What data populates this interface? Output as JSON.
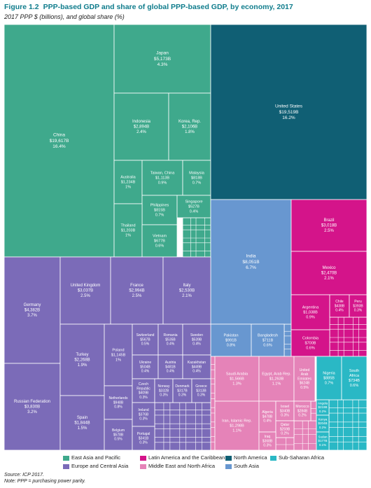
{
  "figure": {
    "number": "Figure 1.2",
    "title": "PPP-based GDP and share of global PPP-based GDP, by economy, 2017",
    "subtitle": "2017 PPP $ (billions), and global share (%)",
    "source": "Source: ICP 2017.",
    "note": "Note: PPP = purchasing power parity."
  },
  "colors": {
    "east_asia_pacific": "#3fa98c",
    "europe_central_asia": "#7b6bb8",
    "latin_america_caribbean": "#d4148a",
    "middle_east_north_africa": "#e583b8",
    "north_america": "#105f74",
    "south_asia": "#6897d0",
    "sub_saharan_africa": "#2ab8c5"
  },
  "chart_data": {
    "type": "treemap",
    "legend": [
      {
        "region": "east_asia_pacific",
        "label": "East Asia and Pacific"
      },
      {
        "region": "latin_america_caribbean",
        "label": "Latin America and the Caribbean"
      },
      {
        "region": "north_america",
        "label": "North America"
      },
      {
        "region": "sub_saharan_africa",
        "label": "Sub-Saharan Africa"
      },
      {
        "region": "europe_central_asia",
        "label": "Europe and Central Asia"
      },
      {
        "region": "middle_east_north_africa",
        "label": "Middle East and North Africa"
      },
      {
        "region": "south_asia",
        "label": "South Asia"
      }
    ],
    "economies": [
      {
        "name": "China",
        "value": "$19,617B",
        "share": "16.4%",
        "region": "east_asia_pacific"
      },
      {
        "name": "Japan",
        "value": "$5,173B",
        "share": "4.3%",
        "region": "east_asia_pacific"
      },
      {
        "name": "Indonesia",
        "value": "$2,894B",
        "share": "2.4%",
        "region": "east_asia_pacific"
      },
      {
        "name": "Korea, Rep.",
        "value": "$2,106B",
        "share": "1.8%",
        "region": "east_asia_pacific"
      },
      {
        "name": "Australia",
        "value": "$1,234B",
        "share": "1%",
        "region": "east_asia_pacific"
      },
      {
        "name": "Taiwan, China",
        "value": "$1,113B",
        "share": "0.9%",
        "region": "east_asia_pacific"
      },
      {
        "name": "Malaysia",
        "value": "$818B",
        "share": "0.7%",
        "region": "east_asia_pacific"
      },
      {
        "name": "Philippines",
        "value": "$815B",
        "share": "0.7%",
        "region": "east_asia_pacific"
      },
      {
        "name": "Singapore",
        "value": "$527B",
        "share": "0.4%",
        "region": "east_asia_pacific"
      },
      {
        "name": "Thailand",
        "value": "$1,203B",
        "share": "1%",
        "region": "east_asia_pacific"
      },
      {
        "name": "Vietnam",
        "value": "$677B",
        "share": "0.6%",
        "region": "east_asia_pacific"
      },
      {
        "name": "United States",
        "value": "$19,519B",
        "share": "16.2%",
        "region": "north_america"
      },
      {
        "name": "India",
        "value": "$8,051B",
        "share": "6.7%",
        "region": "south_asia"
      },
      {
        "name": "Pakistan",
        "value": "$991B",
        "share": "0.8%",
        "region": "south_asia"
      },
      {
        "name": "Bangladesh",
        "value": "$711B",
        "share": "0.6%",
        "region": "south_asia"
      },
      {
        "name": "Brazil",
        "value": "$3,018B",
        "share": "2.5%",
        "region": "latin_america_caribbean"
      },
      {
        "name": "Mexico",
        "value": "$2,470B",
        "share": "2.1%",
        "region": "latin_america_caribbean"
      },
      {
        "name": "Argentina",
        "value": "$1,038B",
        "share": "0.9%",
        "region": "latin_america_caribbean"
      },
      {
        "name": "Chile",
        "value": "$438B",
        "share": "0.4%",
        "region": "latin_america_caribbean"
      },
      {
        "name": "Peru",
        "value": "$393B",
        "share": "0.3%",
        "region": "latin_america_caribbean"
      },
      {
        "name": "Colombia",
        "value": "$700B",
        "share": "0.6%",
        "region": "latin_america_caribbean"
      },
      {
        "name": "Germany",
        "value": "$4,382B",
        "share": "3.7%",
        "region": "europe_central_asia"
      },
      {
        "name": "United Kingdom",
        "value": "$3,037B",
        "share": "2.5%",
        "region": "europe_central_asia"
      },
      {
        "name": "France",
        "value": "$2,994B",
        "share": "2.5%",
        "region": "europe_central_asia"
      },
      {
        "name": "Italy",
        "value": "$2,530B",
        "share": "2.1%",
        "region": "europe_central_asia"
      },
      {
        "name": "Russian Federation",
        "value": "$3,830B",
        "share": "3.2%",
        "region": "europe_central_asia"
      },
      {
        "name": "Turkey",
        "value": "$2,268B",
        "share": "1.9%",
        "region": "europe_central_asia"
      },
      {
        "name": "Spain",
        "value": "$1,844B",
        "share": "1.5%",
        "region": "europe_central_asia"
      },
      {
        "name": "Poland",
        "value": "$1,145B",
        "share": "1%",
        "region": "europe_central_asia"
      },
      {
        "name": "Netherlands",
        "value": "$948B",
        "share": "0.8%",
        "region": "europe_central_asia"
      },
      {
        "name": "Belgium",
        "value": "$578B",
        "share": "0.5%",
        "region": "europe_central_asia"
      },
      {
        "name": "Switzerland",
        "value": "$567B",
        "share": "0.5%",
        "region": "europe_central_asia"
      },
      {
        "name": "Romania",
        "value": "$535B",
        "share": "0.4%",
        "region": "europe_central_asia"
      },
      {
        "name": "Sweden",
        "value": "$539B",
        "share": "0.4%",
        "region": "europe_central_asia"
      },
      {
        "name": "Ukraine",
        "value": "$504B",
        "share": "0.4%",
        "region": "europe_central_asia"
      },
      {
        "name": "Austria",
        "value": "$481B",
        "share": "0.4%",
        "region": "europe_central_asia"
      },
      {
        "name": "Kazakhstan",
        "value": "$449B",
        "share": "0.4%",
        "region": "europe_central_asia"
      },
      {
        "name": "Czech Republic",
        "value": "$409B",
        "share": "0.3%",
        "region": "europe_central_asia"
      },
      {
        "name": "Norway",
        "value": "$332B",
        "share": "0.3%",
        "region": "europe_central_asia"
      },
      {
        "name": "Denmark",
        "value": "$317B",
        "share": "0.3%",
        "region": "europe_central_asia"
      },
      {
        "name": "Greece",
        "value": "$313B",
        "share": "0.3%",
        "region": "europe_central_asia"
      },
      {
        "name": "Ireland",
        "value": "$376B",
        "share": "0.3%",
        "region": "europe_central_asia"
      },
      {
        "name": "Portugal",
        "value": "$341B",
        "share": "0.3%",
        "region": "europe_central_asia"
      },
      {
        "name": "Saudi Arabia",
        "value": "$1,566B",
        "share": "1.3%",
        "region": "middle_east_north_africa"
      },
      {
        "name": "Egypt, Arab Rep.",
        "value": "$1,263B",
        "share": "1.1%",
        "region": "middle_east_north_africa"
      },
      {
        "name": "United Arab Emirates",
        "value": "$624B",
        "share": "0.5%",
        "region": "middle_east_north_africa"
      },
      {
        "name": "Iran, Islamic Rep.",
        "value": "$1,298B",
        "share": "1.1%",
        "region": "middle_east_north_africa"
      },
      {
        "name": "Algeria",
        "value": "$478B",
        "share": "0.4%",
        "region": "middle_east_north_africa"
      },
      {
        "name": "Israel",
        "value": "$340B",
        "share": "0.3%",
        "region": "middle_east_north_africa"
      },
      {
        "name": "Morocco",
        "value": "$284B",
        "share": "0.2%",
        "region": "middle_east_north_africa"
      },
      {
        "name": "Qatar",
        "value": "$259B",
        "share": "0.2%",
        "region": "middle_east_north_africa"
      },
      {
        "name": "Iraq",
        "value": "$368B",
        "share": "0.3%",
        "region": "middle_east_north_africa"
      },
      {
        "name": "Nigeria",
        "value": "$885B",
        "share": "0.7%",
        "region": "sub_saharan_africa"
      },
      {
        "name": "South Africa",
        "value": "$734B",
        "share": "0.6%",
        "region": "sub_saharan_africa"
      },
      {
        "name": "Angola",
        "value": "$219B",
        "share": "0.2%",
        "region": "sub_saharan_africa"
      },
      {
        "name": "Kenya",
        "value": "$204B",
        "share": "0.2%",
        "region": "sub_saharan_africa"
      },
      {
        "name": "Sudan",
        "value": "$177B",
        "share": "0.1%",
        "region": "sub_saharan_africa"
      }
    ]
  }
}
